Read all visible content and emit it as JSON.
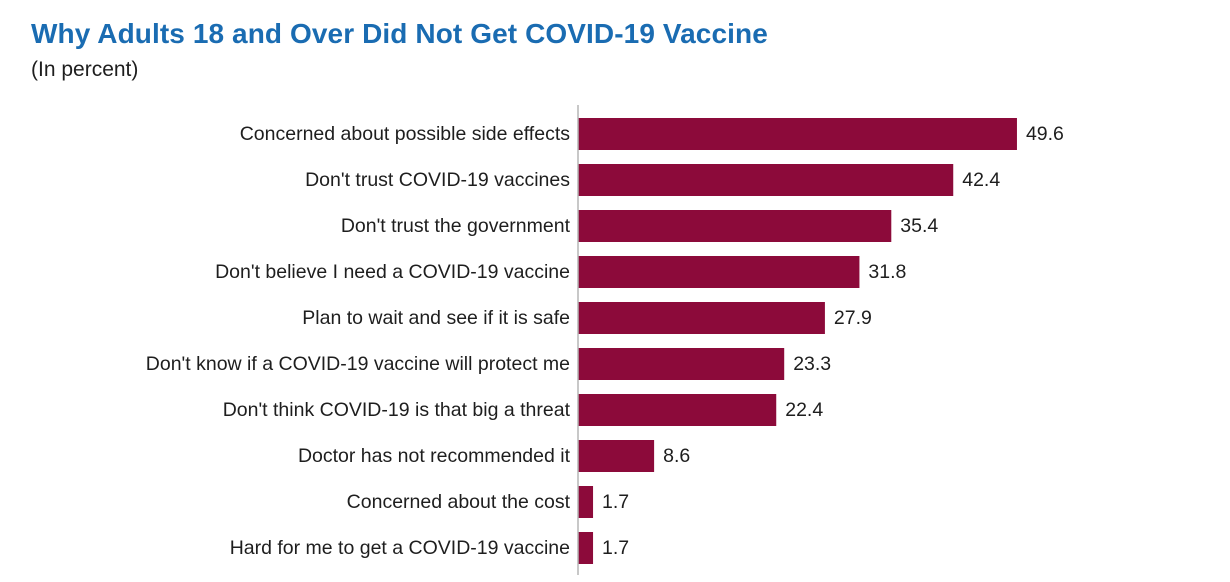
{
  "header": {
    "title": "Why Adults 18 and Over Did Not Get COVID-19 Vaccine",
    "subtitle": "(In percent)"
  },
  "colors": {
    "bar": "#8c0a3a",
    "title": "#1a6cb2",
    "axis": "#b5b5b5"
  },
  "chart_data": {
    "type": "bar",
    "orientation": "horizontal",
    "title": "Why Adults 18 and Over Did Not Get COVID-19 Vaccine",
    "subtitle": "(In percent)",
    "categories": [
      "Concerned about possible side effects",
      "Don't trust COVID-19 vaccines",
      "Don't trust the government",
      "Don't believe I need a COVID-19 vaccine",
      "Plan to wait and see if it is safe",
      "Don't know if a COVID-19 vaccine will protect me",
      "Don't think COVID-19 is that big a threat",
      "Doctor has not recommended it",
      "Concerned about the cost",
      "Hard for me to get a COVID-19 vaccine"
    ],
    "values": [
      49.6,
      42.4,
      35.4,
      31.8,
      27.9,
      23.3,
      22.4,
      8.6,
      1.7,
      1.7
    ],
    "value_labels": [
      "49.6",
      "42.4",
      "35.4",
      "31.8",
      "27.9",
      "23.3",
      "22.4",
      "8.6",
      "1.7",
      "1.7"
    ],
    "xlim": [
      0,
      50
    ],
    "grid": false,
    "legend": "none",
    "data_labels": true
  }
}
